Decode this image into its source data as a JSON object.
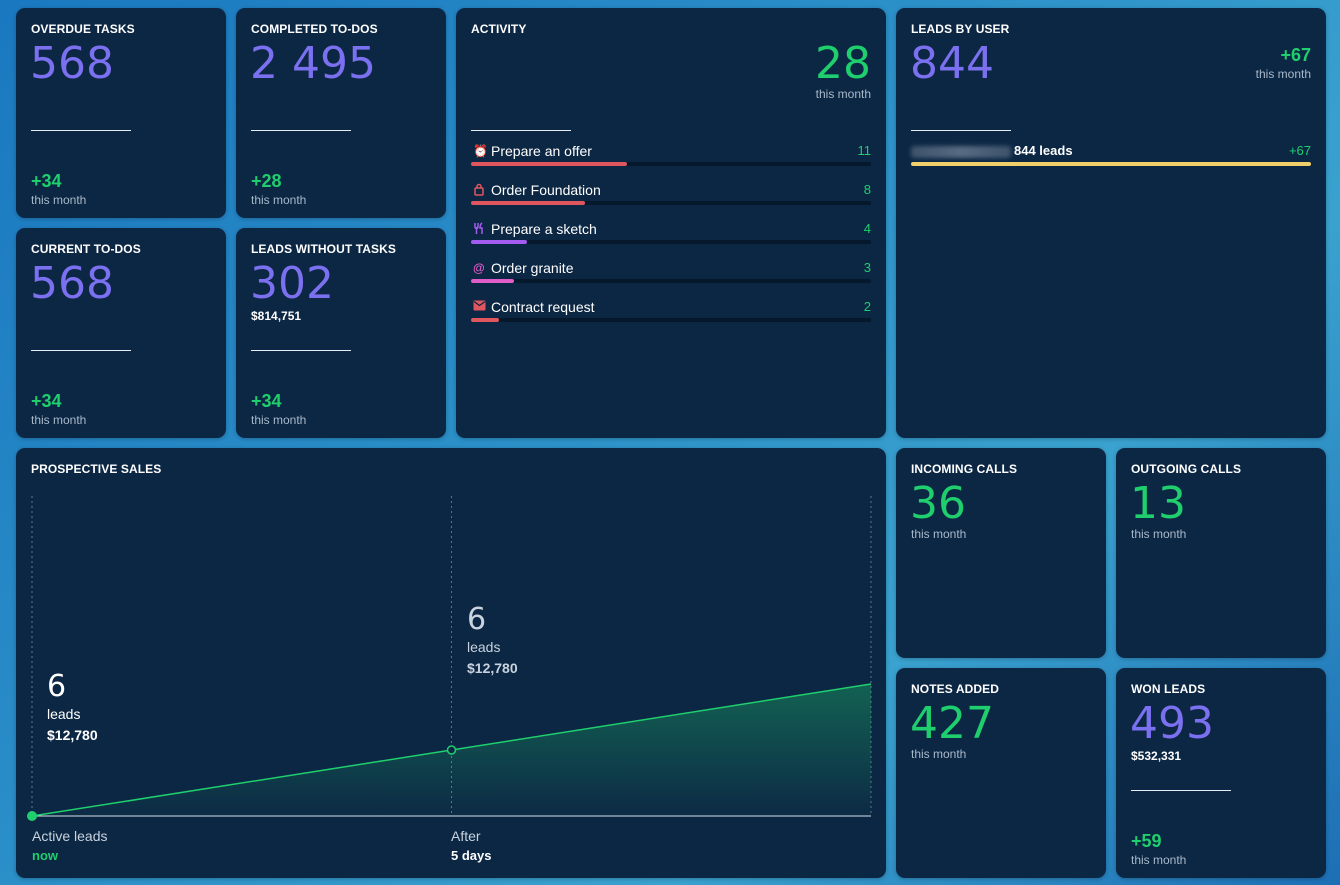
{
  "cards": {
    "overdue_tasks": {
      "title": "OVERDUE TASKS",
      "value": "568",
      "delta": "+34",
      "period": "this month"
    },
    "completed_todos": {
      "title": "COMPLETED TO-DOS",
      "value": "2 495",
      "delta": "+28",
      "period": "this month"
    },
    "current_todos": {
      "title": "CURRENT TO-DOS",
      "value": "568",
      "delta": "+34",
      "period": "this month"
    },
    "leads_without_tasks": {
      "title": "LEADS WITHOUT TASKS",
      "value": "302",
      "amount": "$814,751",
      "delta": "+34",
      "period": "this month"
    },
    "activity": {
      "title": "ACTIVITY",
      "value": "28",
      "period": "this month",
      "items": [
        {
          "label": "Prepare an offer",
          "count": "11",
          "icon": "alarm-clock-icon",
          "color": "#e0565f",
          "fraction": 0.39
        },
        {
          "label": "Order Foundation",
          "count": "8",
          "icon": "lock-icon",
          "color": "#e0565f",
          "fraction": 0.285
        },
        {
          "label": "Prepare a sketch",
          "count": "4",
          "icon": "fork-knife-icon",
          "color": "#a45cf0",
          "fraction": 0.14
        },
        {
          "label": "Order granite",
          "count": "3",
          "icon": "at-sign-icon",
          "color": "#e05cc8",
          "fraction": 0.107
        },
        {
          "label": "Contract request",
          "count": "2",
          "icon": "envelope-icon",
          "color": "#e0565f",
          "fraction": 0.07
        }
      ]
    },
    "leads_by_user": {
      "title": "LEADS BY USER",
      "value": "844",
      "delta": "+67",
      "period": "this month",
      "user_leads": "844 leads",
      "user_delta": "+67",
      "bar_color": "#f1cf6a",
      "fraction": 1.0
    },
    "incoming_calls": {
      "title": "INCOMING CALLS",
      "value": "36",
      "period": "this month"
    },
    "outgoing_calls": {
      "title": "OUTGOING CALLS",
      "value": "13",
      "period": "this month"
    },
    "notes_added": {
      "title": "NOTES ADDED",
      "value": "427",
      "period": "this month"
    },
    "won_leads": {
      "title": "WON LEADS",
      "value": "493",
      "amount": "$532,331",
      "delta": "+59",
      "period": "this month"
    }
  },
  "chart_data": {
    "type": "area",
    "title": "PROSPECTIVE SALES",
    "x": [
      "Active leads",
      "After",
      ""
    ],
    "x_sub": [
      "now",
      "5 days",
      ""
    ],
    "values": [
      0,
      1,
      2
    ],
    "points": [
      {
        "value": "6",
        "unit": "leads",
        "amount": "$12,780"
      },
      {
        "value": "6",
        "unit": "leads",
        "amount": "$12,780"
      }
    ],
    "line_color": "#1fcf6d"
  },
  "colors": {
    "accent_purple": "#7b70f0",
    "positive_green": "#1fcf6d",
    "card_bg": "#0c2744"
  }
}
